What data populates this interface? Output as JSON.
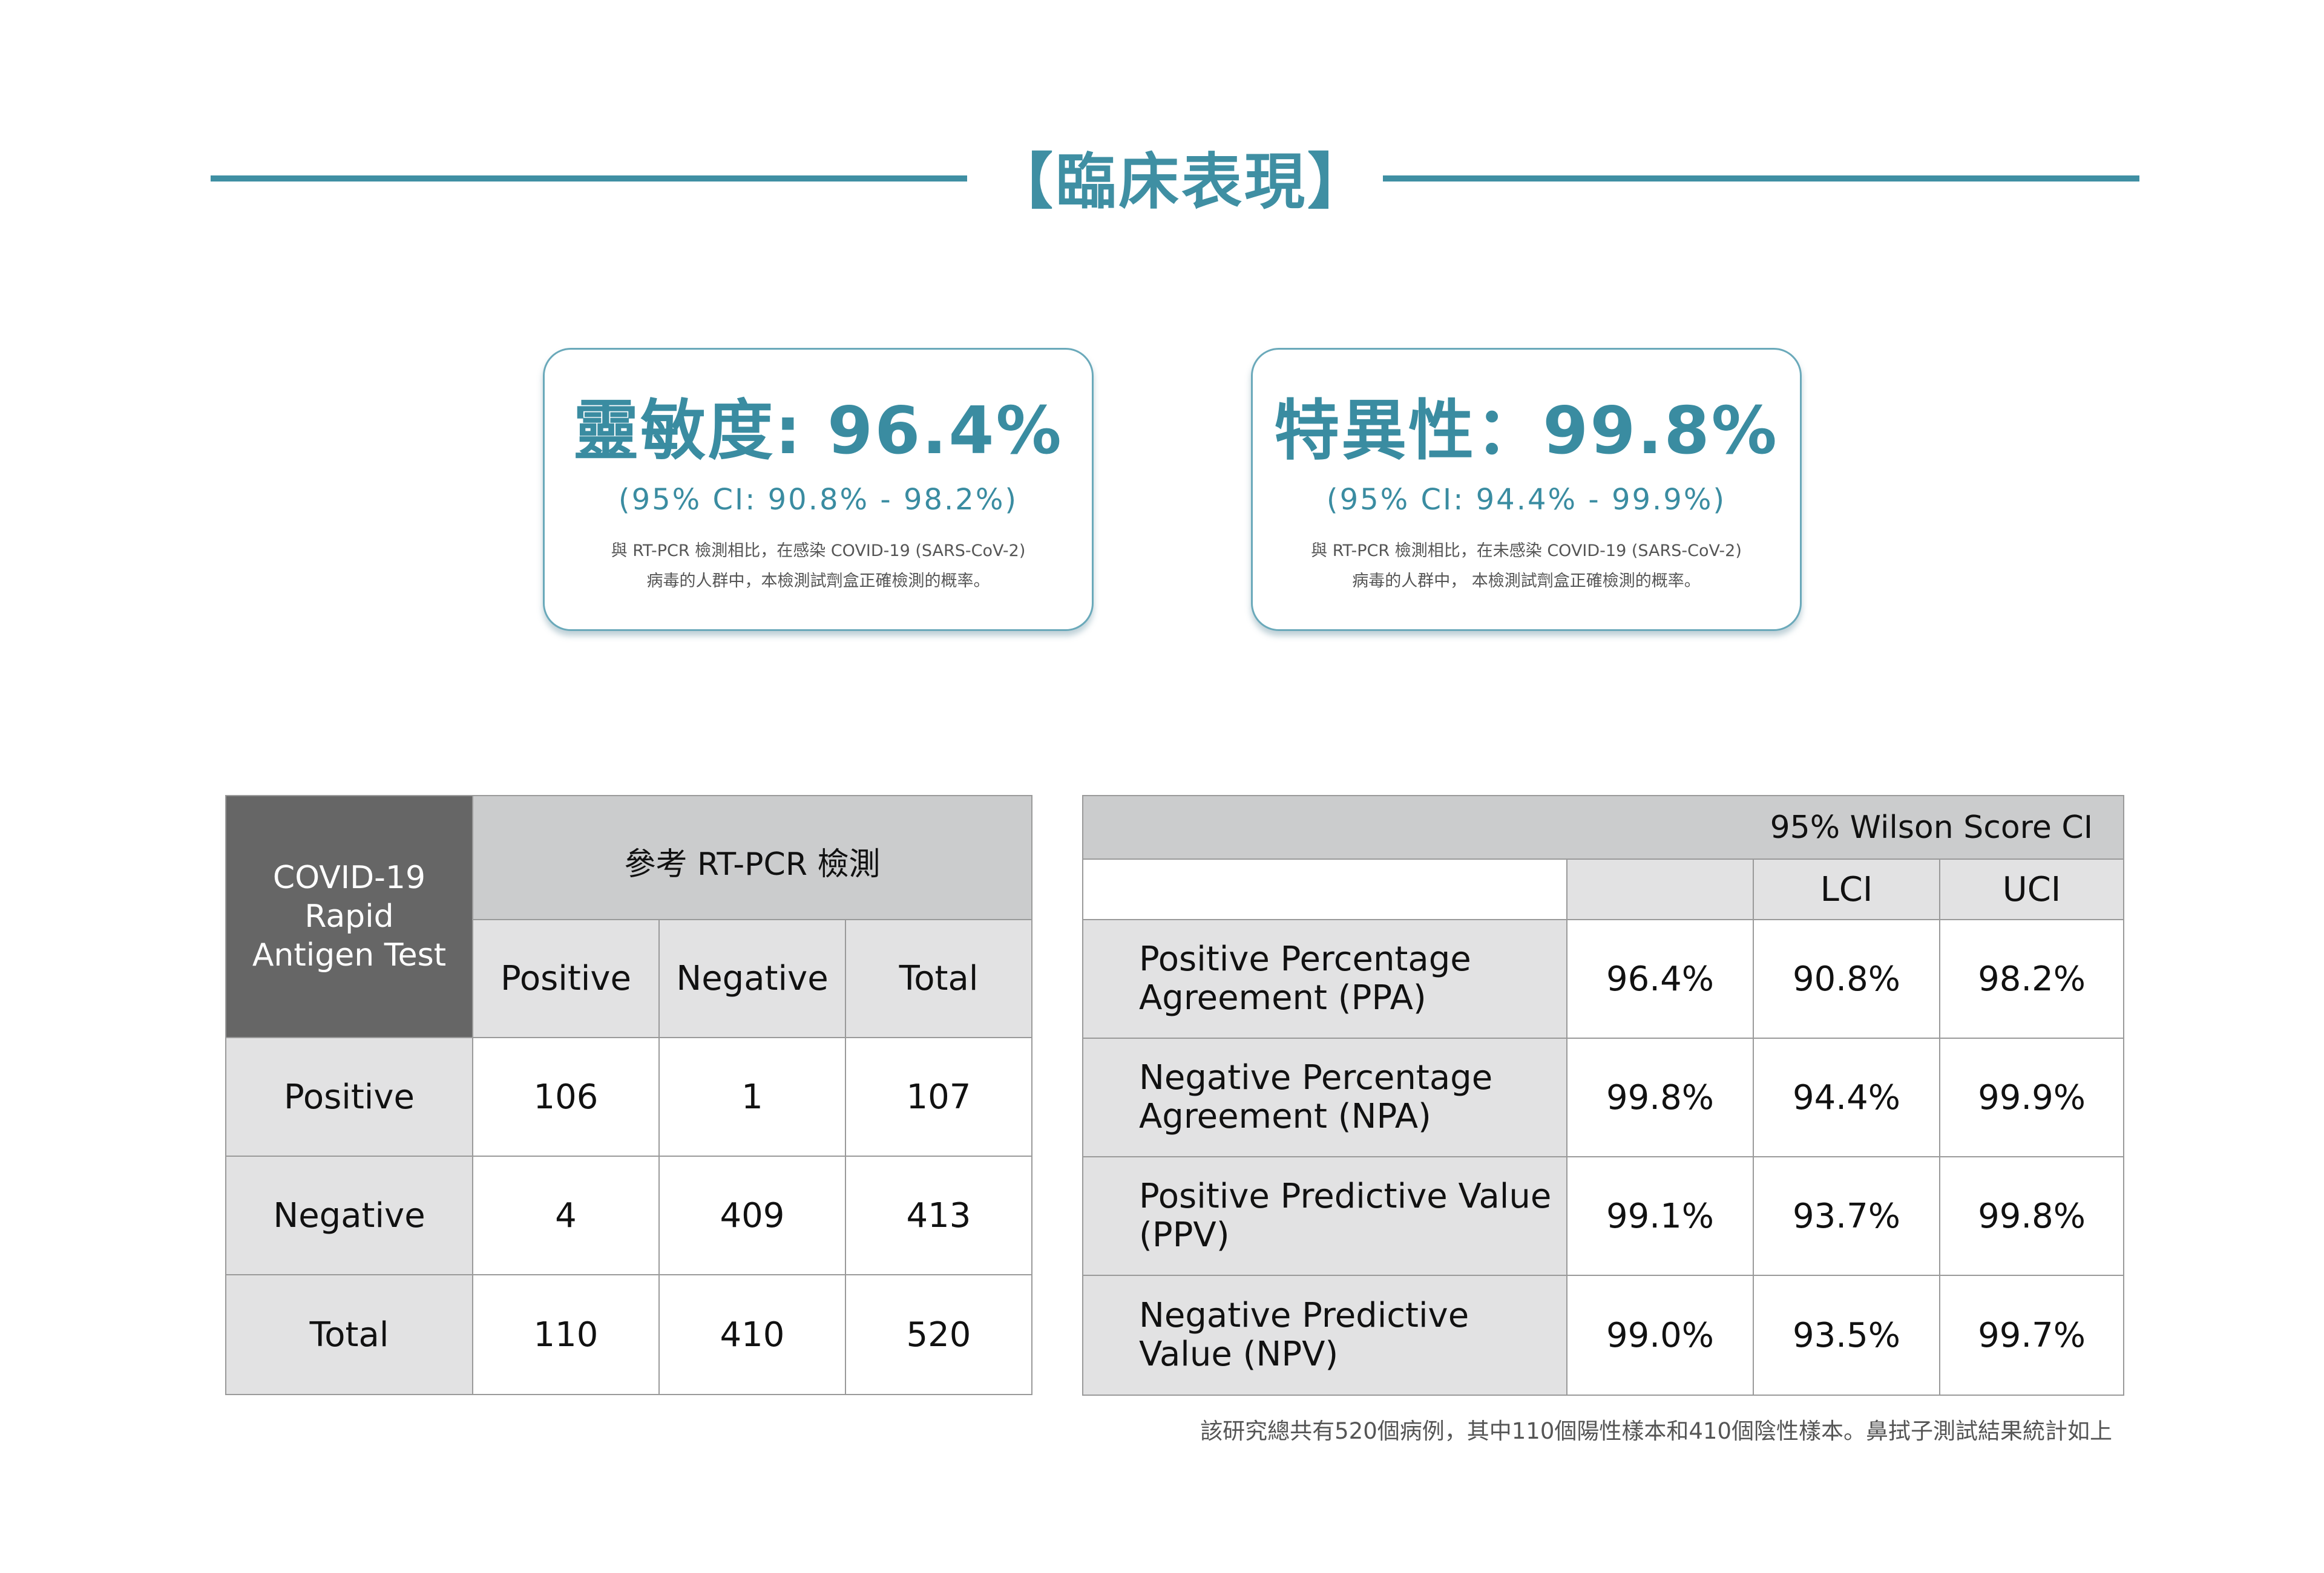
{
  "title": "【臨床表現】",
  "sensitivity": {
    "metric": "靈敏度: 96.4%",
    "ci": "(95% CI: 90.8% - 98.2%)",
    "desc_line1": "與 RT-PCR 檢測相比，在感染 COVID-19 (SARS-CoV-2)",
    "desc_line2": "病毒的人群中，本檢測試劑盒正確檢測的概率。"
  },
  "specificity": {
    "metric": "特異性：99.8%",
    "ci": "(95% CI: 94.4% - 99.9%)",
    "desc_line1": "與 RT-PCR 檢測相比，在未感染 COVID-19 (SARS-CoV-2)",
    "desc_line2": "病毒的人群中， 本檢測試劑盒正確檢測的概率。"
  },
  "contingency": {
    "corner": "COVID-19 Rapid Antigen Test",
    "reference_header": "參考 RT-PCR 檢測",
    "columns": [
      "Positive",
      "Negative",
      "Total"
    ],
    "rows": [
      {
        "label": "Positive",
        "values": [
          "106",
          "1",
          "107"
        ]
      },
      {
        "label": "Negative",
        "values": [
          "4",
          "409",
          "413"
        ]
      },
      {
        "label": "Total",
        "values": [
          "110",
          "410",
          "520"
        ]
      }
    ]
  },
  "ci_table": {
    "header": "95% Wilson Score CI",
    "lci": "LCI",
    "uci": "UCI",
    "rows": [
      {
        "label": "Positive Percentage Agreement (PPA)",
        "value": "96.4%",
        "lci": "90.8%",
        "uci": "98.2%"
      },
      {
        "label": "Negative Percentage Agreement (NPA)",
        "value": "99.8%",
        "lci": "94.4%",
        "uci": "99.9%"
      },
      {
        "label": "Positive Predictive Value (PPV)",
        "value": "99.1%",
        "lci": "93.7%",
        "uci": "99.8%"
      },
      {
        "label": "Negative Predictive Value (NPV)",
        "value": "99.0%",
        "lci": "93.5%",
        "uci": "99.7%"
      }
    ]
  },
  "footnote": "該研究總共有520個病例，其中110個陽性樣本和410個陰性樣本。鼻拭子測試結果統計如上",
  "colors": {
    "accent": "#3f8fa3",
    "dark_header": "#666666",
    "light_gray": "#e2e2e3",
    "mid_gray": "#cbcccd"
  }
}
